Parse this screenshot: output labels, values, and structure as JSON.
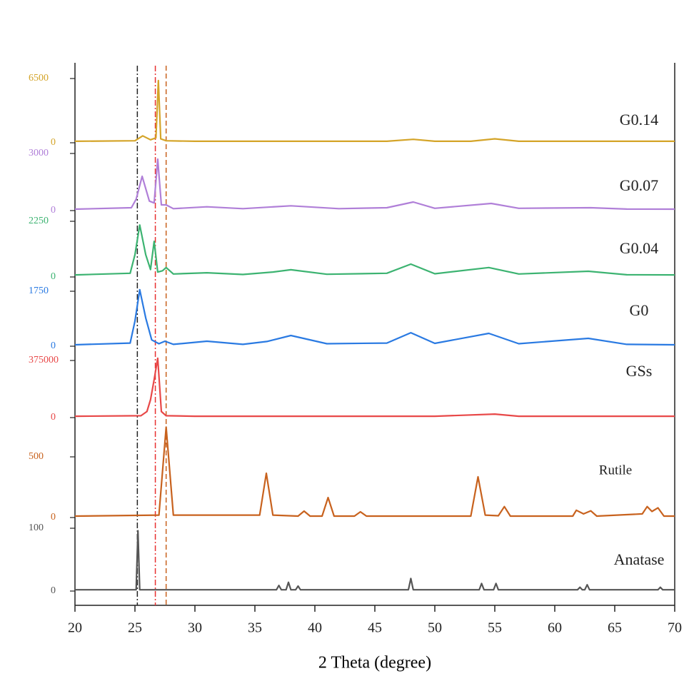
{
  "chart_data": {
    "type": "line",
    "xlabel": "2 Theta (degree)",
    "xlim": [
      20,
      70
    ],
    "xticks": [
      20,
      25,
      30,
      35,
      40,
      45,
      50,
      55,
      60,
      65,
      70
    ],
    "reference_lines": [
      {
        "x": 25.2,
        "color": "#222222"
      },
      {
        "x": 26.7,
        "color": "#e83030"
      },
      {
        "x": 27.6,
        "color": "#c8621e"
      }
    ],
    "series": [
      {
        "name": "G0.14",
        "color": "#d4a428",
        "ylim": [
          0,
          6500
        ],
        "yticks": [
          0,
          6500
        ],
        "x": [
          20,
          25,
          25.65,
          26.3,
          26.75,
          26.95,
          27.15,
          27.6,
          30,
          40,
          46,
          48.2,
          50,
          53,
          55,
          57,
          70
        ],
        "values": [
          150,
          200,
          700,
          300,
          500,
          6300,
          400,
          200,
          150,
          150,
          150,
          350,
          150,
          150,
          400,
          150,
          150
        ]
      },
      {
        "name": "G0.07",
        "color": "#b07fd8",
        "ylim": [
          0,
          3000
        ],
        "yticks": [
          0,
          3000
        ],
        "x": [
          20,
          24.7,
          25.1,
          25.6,
          26.2,
          26.6,
          26.9,
          27.2,
          27.6,
          28.2,
          31,
          34,
          38,
          42,
          46,
          48.2,
          50,
          54.7,
          57,
          63,
          66,
          70
        ],
        "values": [
          75,
          150,
          600,
          1800,
          500,
          400,
          2700,
          300,
          300,
          100,
          200,
          100,
          250,
          100,
          150,
          450,
          120,
          375,
          120,
          150,
          80,
          75
        ]
      },
      {
        "name": "G0.04",
        "color": "#3cb371",
        "ylim": [
          0,
          2250
        ],
        "yticks": [
          0,
          2250
        ],
        "x": [
          20,
          24.6,
          25.0,
          25.4,
          25.9,
          26.3,
          26.6,
          26.9,
          27.3,
          27.6,
          28.2,
          31,
          34,
          36.5,
          38,
          41,
          46,
          48,
          50,
          54.5,
          57,
          62.8,
          66,
          70
        ],
        "values": [
          85,
          150,
          900,
          2100,
          900,
          300,
          1440,
          200,
          250,
          380,
          120,
          170,
          100,
          200,
          290,
          110,
          150,
          520,
          130,
          380,
          120,
          230,
          90,
          85
        ]
      },
      {
        "name": "G0",
        "color": "#2a7ae2",
        "ylim": [
          0,
          1750
        ],
        "yticks": [
          0,
          1750
        ],
        "x": [
          20,
          24.6,
          25.0,
          25.4,
          25.9,
          26.4,
          27.0,
          27.5,
          28.2,
          31,
          34,
          36,
          38,
          41,
          46,
          48,
          50,
          54.5,
          57,
          62.8,
          66,
          70
        ],
        "values": [
          45,
          100,
          800,
          1800,
          900,
          200,
          80,
          160,
          60,
          160,
          60,
          150,
          340,
          80,
          100,
          430,
          90,
          410,
          80,
          250,
          60,
          45
        ]
      },
      {
        "name": "GSs",
        "color": "#e84848",
        "ylim": [
          0,
          375000
        ],
        "yticks": [
          0,
          375000
        ],
        "x": [
          20,
          25.5,
          26.0,
          26.3,
          26.6,
          26.9,
          27.2,
          27.6,
          30,
          50,
          55,
          57,
          70
        ],
        "values": [
          9000,
          12000,
          40000,
          117000,
          250000,
          390000,
          40000,
          12000,
          9000,
          9000,
          23000,
          9000,
          9000
        ]
      },
      {
        "name": "Rutile",
        "color": "#c8621e",
        "ylim": [
          0,
          500
        ],
        "yticks": [
          0,
          500
        ],
        "x": [
          20,
          27.0,
          27.6,
          28.2,
          35.4,
          35.95,
          36.5,
          38.6,
          39.1,
          39.6,
          40.6,
          41.1,
          41.6,
          43.3,
          43.8,
          44.3,
          53.0,
          53.6,
          54.2,
          55.3,
          55.8,
          56.3,
          61.5,
          61.8,
          62.4,
          63.0,
          63.5,
          67.3,
          67.7,
          68.1,
          68.6,
          69.1,
          70
        ],
        "values": [
          12,
          20,
          745,
          20,
          20,
          365,
          20,
          12,
          53,
          12,
          12,
          165,
          12,
          12,
          47,
          12,
          12,
          335,
          20,
          15,
          90,
          12,
          12,
          60,
          30,
          55,
          12,
          30,
          90,
          50,
          80,
          12,
          12
        ]
      },
      {
        "name": "Anatase",
        "color": "#555555",
        "ylim": [
          0,
          100
        ],
        "yticks": [
          0,
          100
        ],
        "x": [
          20,
          25.1,
          25.25,
          25.4,
          36.8,
          37.0,
          37.2,
          37.6,
          37.8,
          38.0,
          38.4,
          38.6,
          38.8,
          47.8,
          48.0,
          48.2,
          53.7,
          53.9,
          54.1,
          54.9,
          55.1,
          55.3,
          61.9,
          62.1,
          62.3,
          62.5,
          62.7,
          62.9,
          68.6,
          68.8,
          69.0,
          70
        ],
        "values": [
          2,
          2,
          96,
          2,
          2,
          9,
          2,
          2,
          14,
          2,
          2,
          8,
          2,
          2,
          20,
          2,
          2,
          12,
          2,
          2,
          12,
          2,
          2,
          6,
          2,
          2,
          10,
          2,
          2,
          6,
          2,
          2
        ]
      }
    ]
  }
}
